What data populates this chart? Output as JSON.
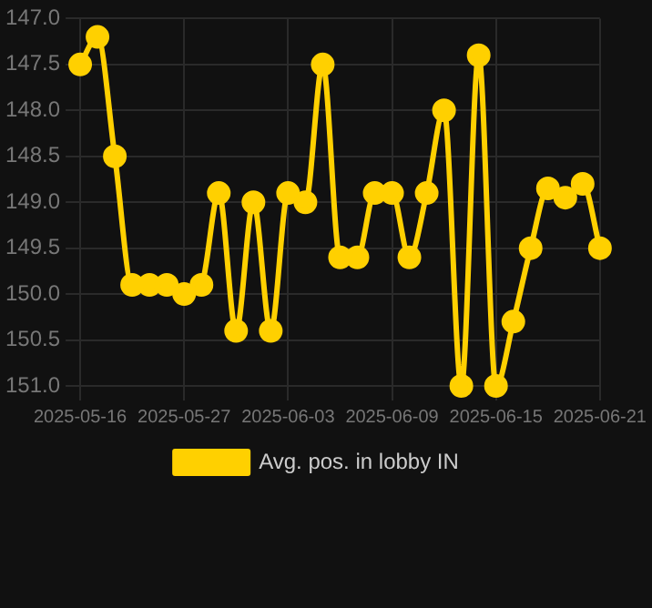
{
  "chart_data": {
    "type": "line",
    "categories": [
      "2025-05-16",
      null,
      null,
      null,
      null,
      null,
      "2025-05-27",
      null,
      null,
      null,
      null,
      null,
      "2025-06-03",
      null,
      null,
      null,
      null,
      null,
      "2025-06-09",
      null,
      null,
      null,
      null,
      null,
      "2025-06-15",
      null,
      null,
      null,
      null,
      null,
      "2025-06-21"
    ],
    "series": [
      {
        "name": "Avg. pos. in lobby IN",
        "color": "#ffd000",
        "values": [
          147.5,
          147.2,
          148.5,
          149.9,
          149.9,
          149.9,
          150.0,
          149.9,
          148.9,
          150.4,
          149.0,
          150.4,
          148.9,
          149.0,
          147.5,
          149.6,
          149.6,
          148.9,
          148.9,
          149.6,
          148.9,
          148.0,
          151.0,
          147.4,
          151.0,
          150.3,
          149.5,
          148.85,
          148.95,
          148.8,
          149.5
        ]
      }
    ],
    "ylim": [
      151,
      147
    ],
    "yticks": [
      {
        "value": 147,
        "label": "147.0"
      },
      {
        "value": 147.5,
        "label": "147.5"
      },
      {
        "value": 148,
        "label": "148.0"
      },
      {
        "value": 148.5,
        "label": "148.5"
      },
      {
        "value": 149,
        "label": "149.0"
      },
      {
        "value": 149.5,
        "label": "149.5"
      },
      {
        "value": 150,
        "label": "150.0"
      },
      {
        "value": 150.5,
        "label": "150.5"
      },
      {
        "value": 151,
        "label": "151.0"
      }
    ],
    "grid": true,
    "legend": "bottom",
    "marker": "circle",
    "line_style": "solid"
  }
}
